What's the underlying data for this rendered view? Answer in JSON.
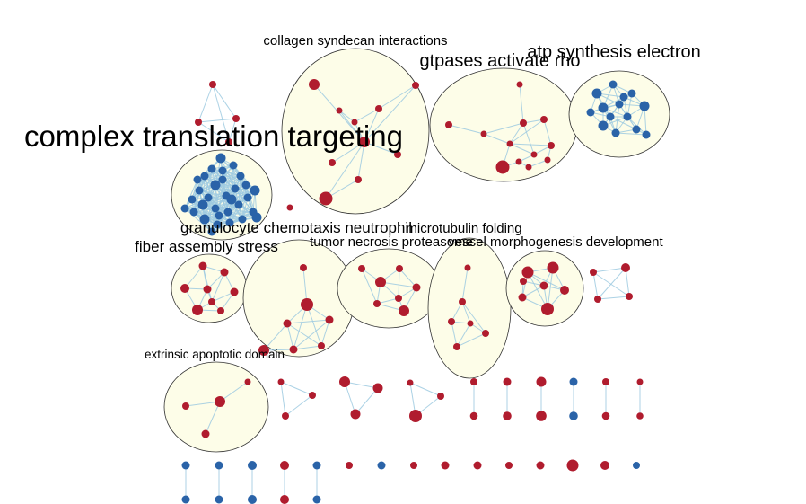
{
  "colors": {
    "red_node": "#b01c2e",
    "blue_node": "#2a63a8",
    "edge": "#9ecae1",
    "cluster_fill": "#fdfde8",
    "cluster_stroke": "#333333"
  },
  "labels": {
    "complex_translation_targeting": "complex translation targeting",
    "collagen_syndecan_interactions": "collagen syndecan interactions",
    "gtpases_activate_rho": "gtpases activate rho",
    "atp_synthesis_electron": "atp synthesis electron",
    "granulocyte_chemotaxis_neutrophil": "granulocyte chemotaxis neutrophil",
    "fiber_assembly_stress": "fiber assembly stress",
    "tumor_necrosis_proteasome": "tumor necrosis proteasome",
    "microtubulin_folding": "microtubulin folding",
    "vessel_morphogenesis_development": "vessel morphogenesis development",
    "extrinsic_apoptotic_domain": "extrinsic apoptotic domain"
  }
}
